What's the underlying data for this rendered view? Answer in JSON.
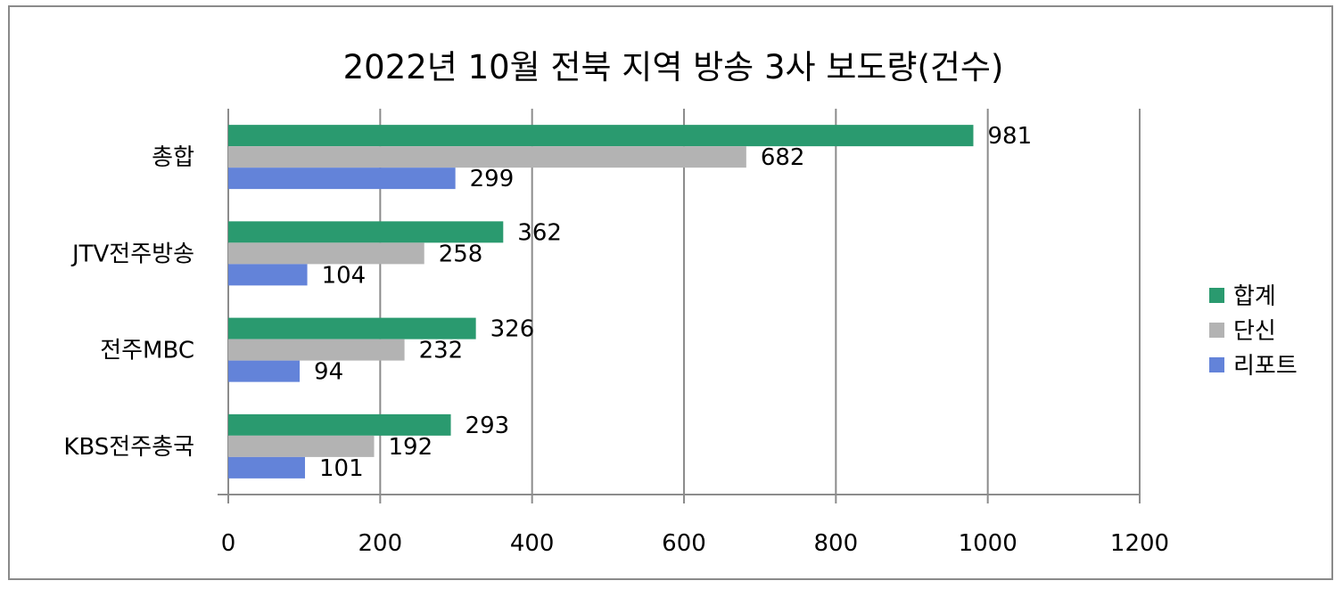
{
  "chart_data": {
    "type": "bar",
    "orientation": "horizontal",
    "title": "2022년 10월 전북 지역 방송 3사 보도량(건수)",
    "categories": [
      "총합",
      "JTV전주방송",
      "전주MBC",
      "KBS전주총국"
    ],
    "series": [
      {
        "name": "합계",
        "color": "#2a9a6f",
        "values": [
          981,
          362,
          326,
          293
        ]
      },
      {
        "name": "단신",
        "color": "#b3b3b3",
        "values": [
          682,
          258,
          232,
          192
        ]
      },
      {
        "name": "리포트",
        "color": "#6383d9",
        "values": [
          299,
          104,
          94,
          101
        ]
      }
    ],
    "xlim": [
      0,
      1200
    ],
    "xticks": [
      "0",
      "200",
      "400",
      "600",
      "800",
      "1000",
      "1200"
    ],
    "grid": true,
    "legend": "right"
  }
}
